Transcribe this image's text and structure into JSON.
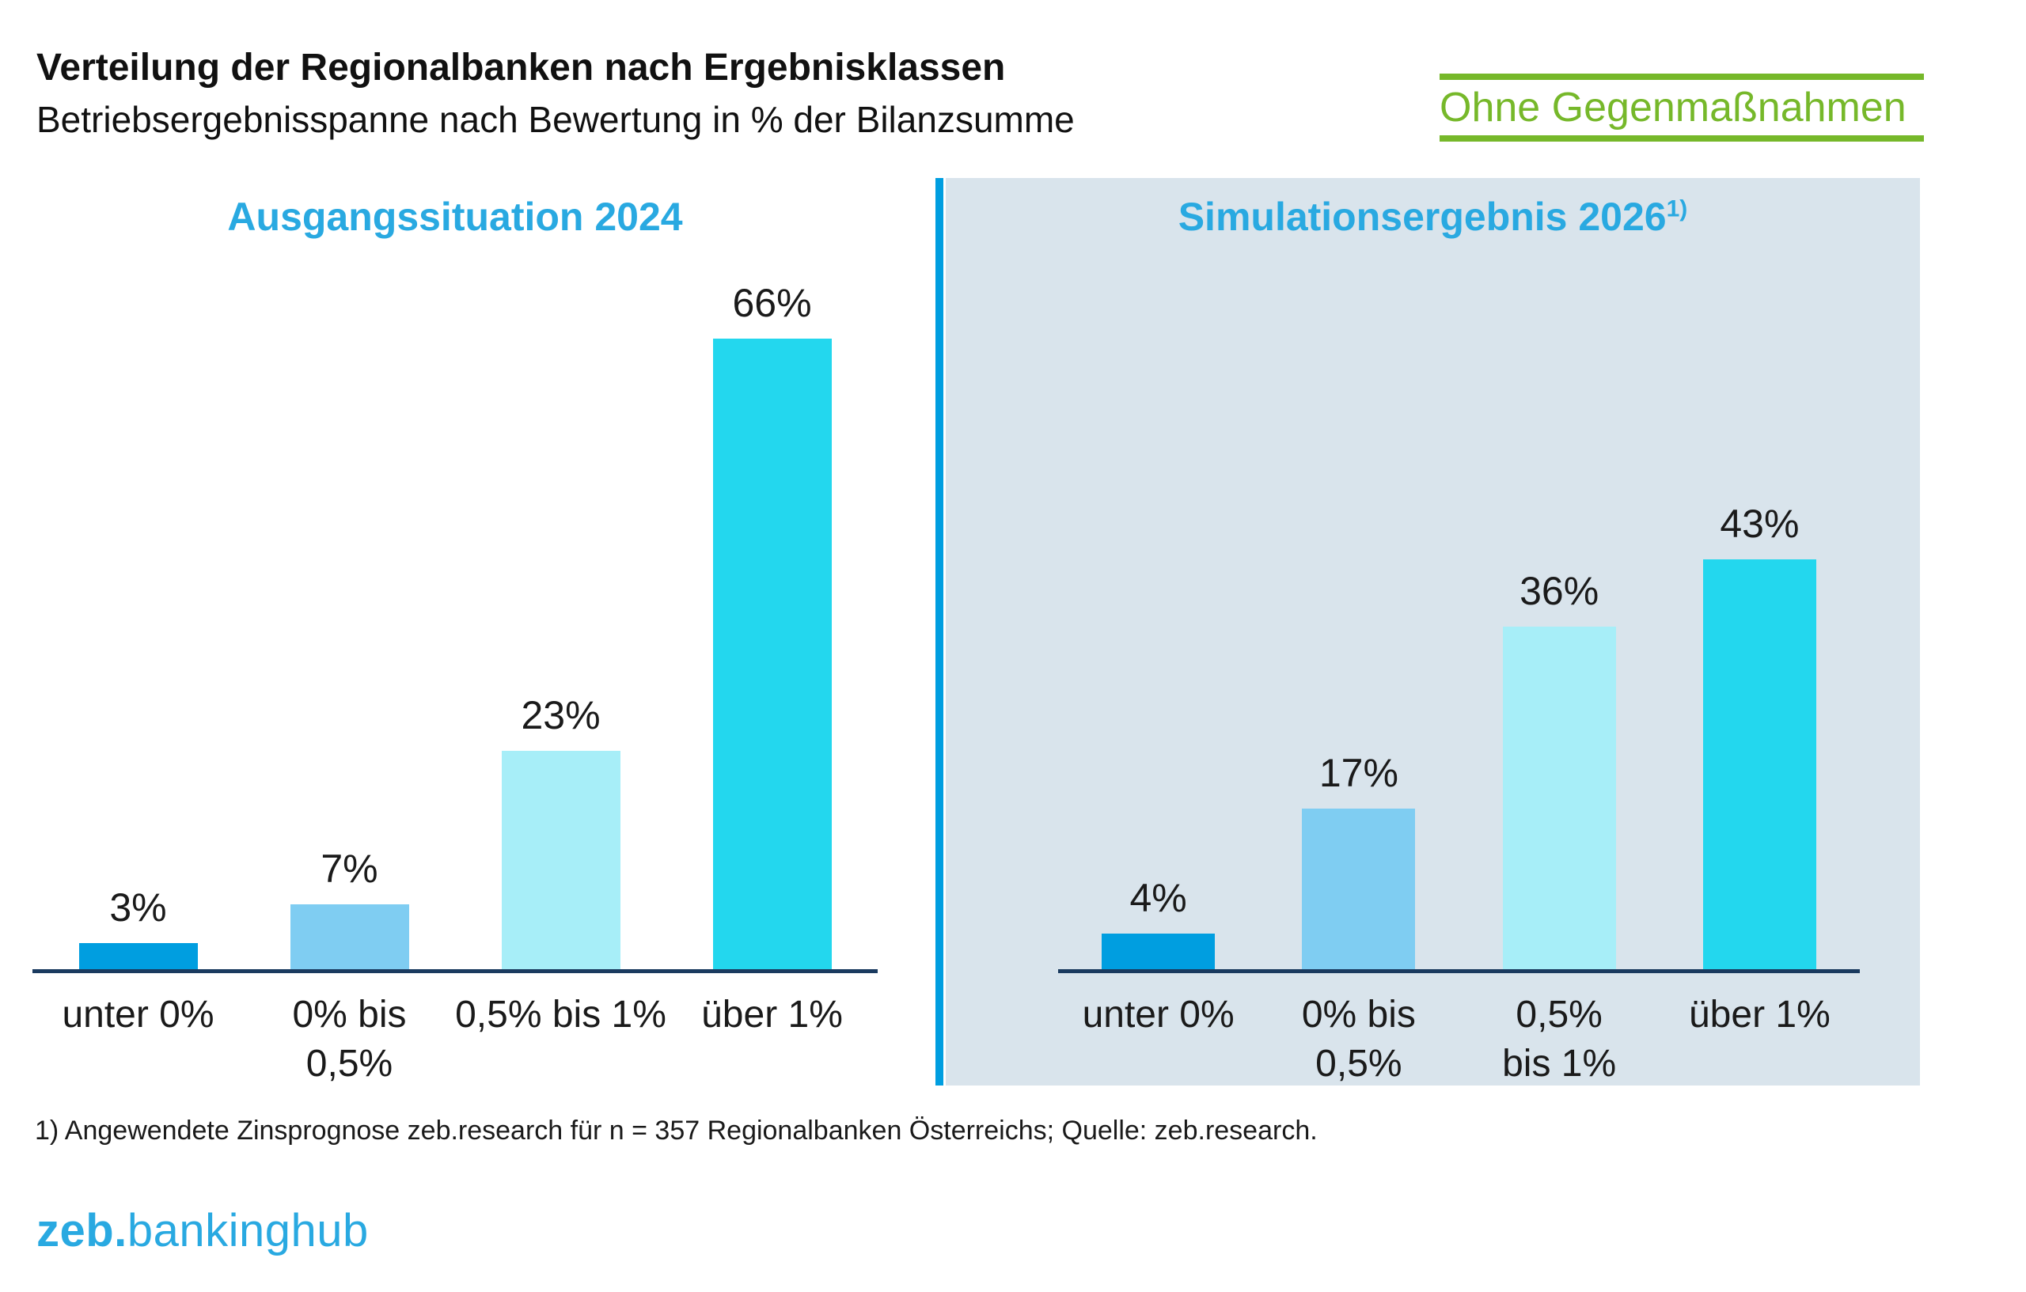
{
  "header": {
    "title": "Verteilung der Regionalbanken nach Ergebnisklassen",
    "subtitle": "Betriebsergebnisspanne nach Bewertung in % der Bilanzsumme",
    "badge": "Ohne Gegenmaßnahmen"
  },
  "charts": [
    {
      "title": "Ausgangssituation 2024",
      "title_superscript": "",
      "bars": [
        {
          "label_lines": [
            "unter 0%"
          ],
          "value": 3,
          "value_label": "3%",
          "color": "#009EE0"
        },
        {
          "label_lines": [
            "0% bis",
            "0,5%"
          ],
          "value": 7,
          "value_label": "7%",
          "color": "#7FCDF2"
        },
        {
          "label_lines": [
            "0,5% bis 1%"
          ],
          "value": 23,
          "value_label": "23%",
          "color": "#A7EEF8"
        },
        {
          "label_lines": [
            "über 1%"
          ],
          "value": 66,
          "value_label": "66%",
          "color": "#23D7EE"
        }
      ]
    },
    {
      "title": "Simulationsergebnis 2026",
      "title_superscript": "1)",
      "bars": [
        {
          "label_lines": [
            "unter 0%"
          ],
          "value": 4,
          "value_label": "4%",
          "color": "#009EE0"
        },
        {
          "label_lines": [
            "0% bis",
            "0,5%"
          ],
          "value": 17,
          "value_label": "17%",
          "color": "#7FCDF2"
        },
        {
          "label_lines": [
            "0,5%",
            "bis 1%"
          ],
          "value": 36,
          "value_label": "36%",
          "color": "#A7EEF8"
        },
        {
          "label_lines": [
            "über 1%"
          ],
          "value": 43,
          "value_label": "43%",
          "color": "#23D7EE"
        }
      ]
    }
  ],
  "chart_data": [
    {
      "type": "bar",
      "title": "Ausgangssituation 2024",
      "categories": [
        "unter 0%",
        "0% bis 0,5%",
        "0,5% bis 1%",
        "über 1%"
      ],
      "values": [
        3,
        7,
        23,
        66
      ],
      "value_labels": [
        "3%",
        "7%",
        "23%",
        "66%"
      ],
      "bar_colors": [
        "#009EE0",
        "#7FCDF2",
        "#A7EEF8",
        "#23D7EE"
      ],
      "xlabel": "",
      "ylabel": "",
      "ylim": [
        0,
        66
      ],
      "grid": false,
      "legend": "none",
      "data_labels": "above bars",
      "axis_line_color": "#1A3A5F"
    },
    {
      "type": "bar",
      "title": "Simulationsergebnis 2026 1)",
      "categories": [
        "unter 0%",
        "0% bis 0,5%",
        "0,5% bis 1%",
        "über 1%"
      ],
      "values": [
        4,
        17,
        36,
        43
      ],
      "value_labels": [
        "4%",
        "17%",
        "36%",
        "43%"
      ],
      "bar_colors": [
        "#009EE0",
        "#7FCDF2",
        "#A7EEF8",
        "#23D7EE"
      ],
      "xlabel": "",
      "ylabel": "",
      "ylim": [
        0,
        66
      ],
      "grid": false,
      "legend": "none",
      "data_labels": "above bars",
      "background": "#D9E4EC",
      "axis_line_color": "#1A3A5F"
    }
  ],
  "colors": {
    "accent_blue": "#29A9E1",
    "brand_blue": "#009EE0",
    "green": "#76B82A",
    "panel_background": "#D9E4EC",
    "axis_line": "#1A3A5F"
  },
  "footnote": "1) Angewendete Zinsprognose zeb.research für n = 357 Regionalbanken Österreichs; Quelle: zeb.research.",
  "logo": {
    "prefix": "zeb.",
    "suffix": "bankinghub"
  }
}
